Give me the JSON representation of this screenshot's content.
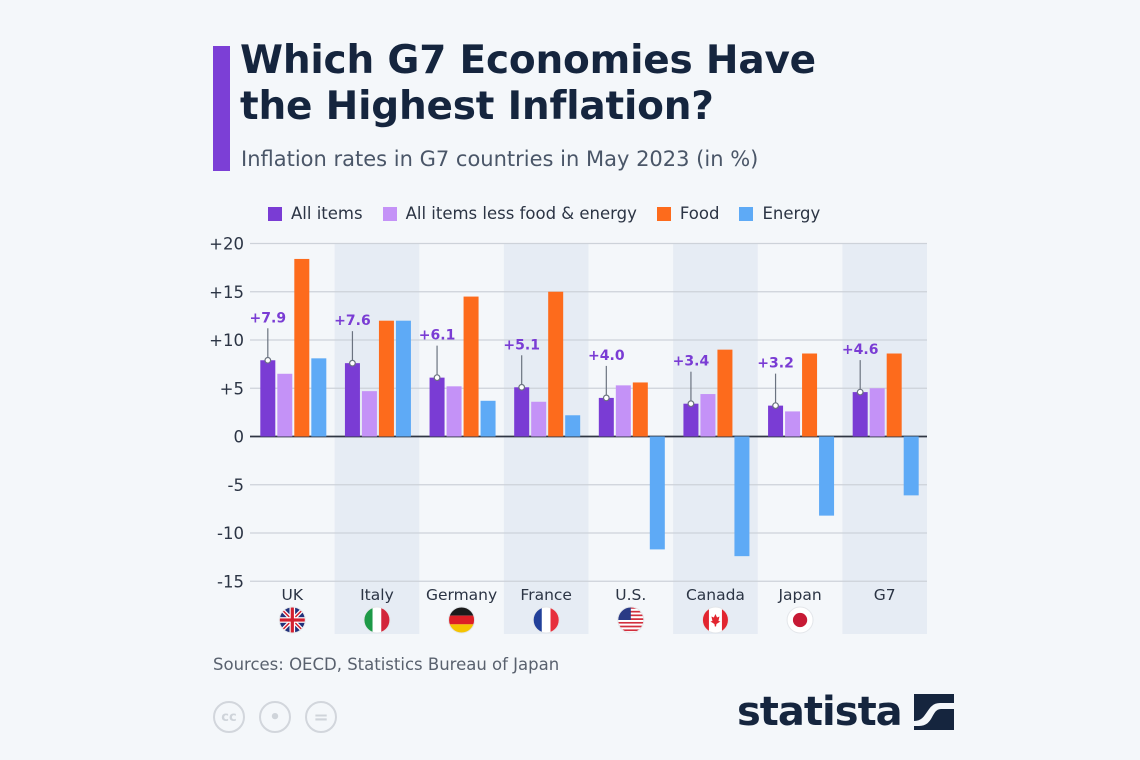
{
  "header": {
    "title_line1": "Which G7 Economies Have",
    "title_line2": "the Highest Inflation?",
    "subtitle": "Inflation rates in G7 countries in May 2023 (in %)"
  },
  "colors": {
    "accent": "#7c3fd6",
    "all_items": "#7a3cd4",
    "core": "#c492f7",
    "food": "#fd6b1c",
    "energy": "#5eaaf6",
    "label": "#7a3cd4"
  },
  "footer": {
    "source": "Sources: OECD, Statistics Bureau of Japan",
    "license_icons": [
      "creative-commons-icon",
      "attribution-icon",
      "no-derivatives-icon"
    ],
    "license_glyphs": [
      "cc",
      "•",
      "="
    ],
    "brand": "statista"
  },
  "chart_data": {
    "type": "bar",
    "title": "Which G7 Economies Have the Highest Inflation?",
    "subtitle": "Inflation rates in G7 countries in May 2023 (in %)",
    "xlabel": "",
    "ylabel": "",
    "ylim": [
      -15,
      20
    ],
    "yticks": [
      20,
      15,
      10,
      5,
      0,
      -5,
      -10,
      -15
    ],
    "ytick_labels": [
      "+20",
      "+15",
      "+10",
      "+5",
      "0",
      "-5",
      "-10",
      "-15"
    ],
    "grid": true,
    "legend_position": "top",
    "categories": [
      "UK",
      "Italy",
      "Germany",
      "France",
      "U.S.",
      "Canada",
      "Japan",
      "G7"
    ],
    "flags": [
      "uk-flag",
      "italy-flag",
      "germany-flag",
      "france-flag",
      "us-flag",
      "canada-flag",
      "japan-flag",
      ""
    ],
    "series": [
      {
        "name": "All items",
        "color": "#7a3cd4",
        "values": [
          7.9,
          7.6,
          6.1,
          5.1,
          4.0,
          3.4,
          3.2,
          4.6
        ],
        "data_labels": [
          "+7.9",
          "+7.6",
          "+6.1",
          "+5.1",
          "+4.0",
          "+3.4",
          "+3.2",
          "+4.6"
        ]
      },
      {
        "name": "All items less food & energy",
        "color": "#c492f7",
        "values": [
          6.5,
          4.7,
          5.2,
          3.6,
          5.3,
          4.4,
          2.6,
          5.0
        ]
      },
      {
        "name": "Food",
        "color": "#fd6b1c",
        "values": [
          18.4,
          12.0,
          14.5,
          15.0,
          5.6,
          9.0,
          8.6,
          8.6
        ]
      },
      {
        "name": "Energy",
        "color": "#5eaaf6",
        "values": [
          8.1,
          12.0,
          3.7,
          2.2,
          -11.7,
          -12.4,
          -8.2,
          -6.1
        ]
      }
    ]
  }
}
